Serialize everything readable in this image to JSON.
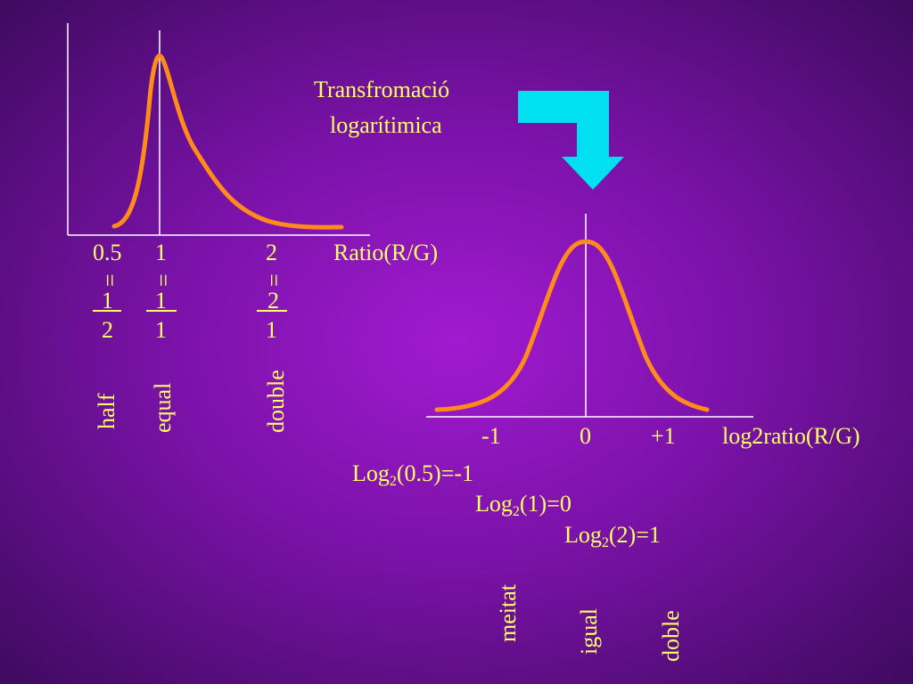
{
  "title": {
    "line1": "Transfromació",
    "line2": "logarítimica"
  },
  "left_plot": {
    "x_axis_label": "Ratio(R/G)",
    "ticks": [
      {
        "label": "0.5",
        "eq": "=",
        "num": "1",
        "den": "2",
        "word": "half"
      },
      {
        "label": "1",
        "eq": "=",
        "num": "1",
        "den": "1",
        "word": "equal"
      },
      {
        "label": "2",
        "eq": "=",
        "num": "2",
        "den": "1",
        "word": "double"
      }
    ],
    "colors": {
      "curve": "#ff8c1a",
      "axes": "#ffffff"
    }
  },
  "right_plot": {
    "x_axis_label": "log2ratio(R/G)",
    "ticks": [
      "-1",
      "0",
      "+1"
    ],
    "colors": {
      "curve": "#ff8c1a",
      "axes": "#ffffff"
    }
  },
  "equations": [
    {
      "prefix": "Log",
      "sub": "2",
      "suffix": "(0.5)=-1"
    },
    {
      "prefix": "Log",
      "sub": "2",
      "suffix": "(1)=0"
    },
    {
      "prefix": "Log",
      "sub": "2",
      "suffix": "(2)=1"
    }
  ],
  "catalan_words": [
    "meitat",
    "igual",
    "doble"
  ],
  "arrow": {
    "color": "#00e0f0",
    "icon": "bent-down-arrow-icon"
  }
}
